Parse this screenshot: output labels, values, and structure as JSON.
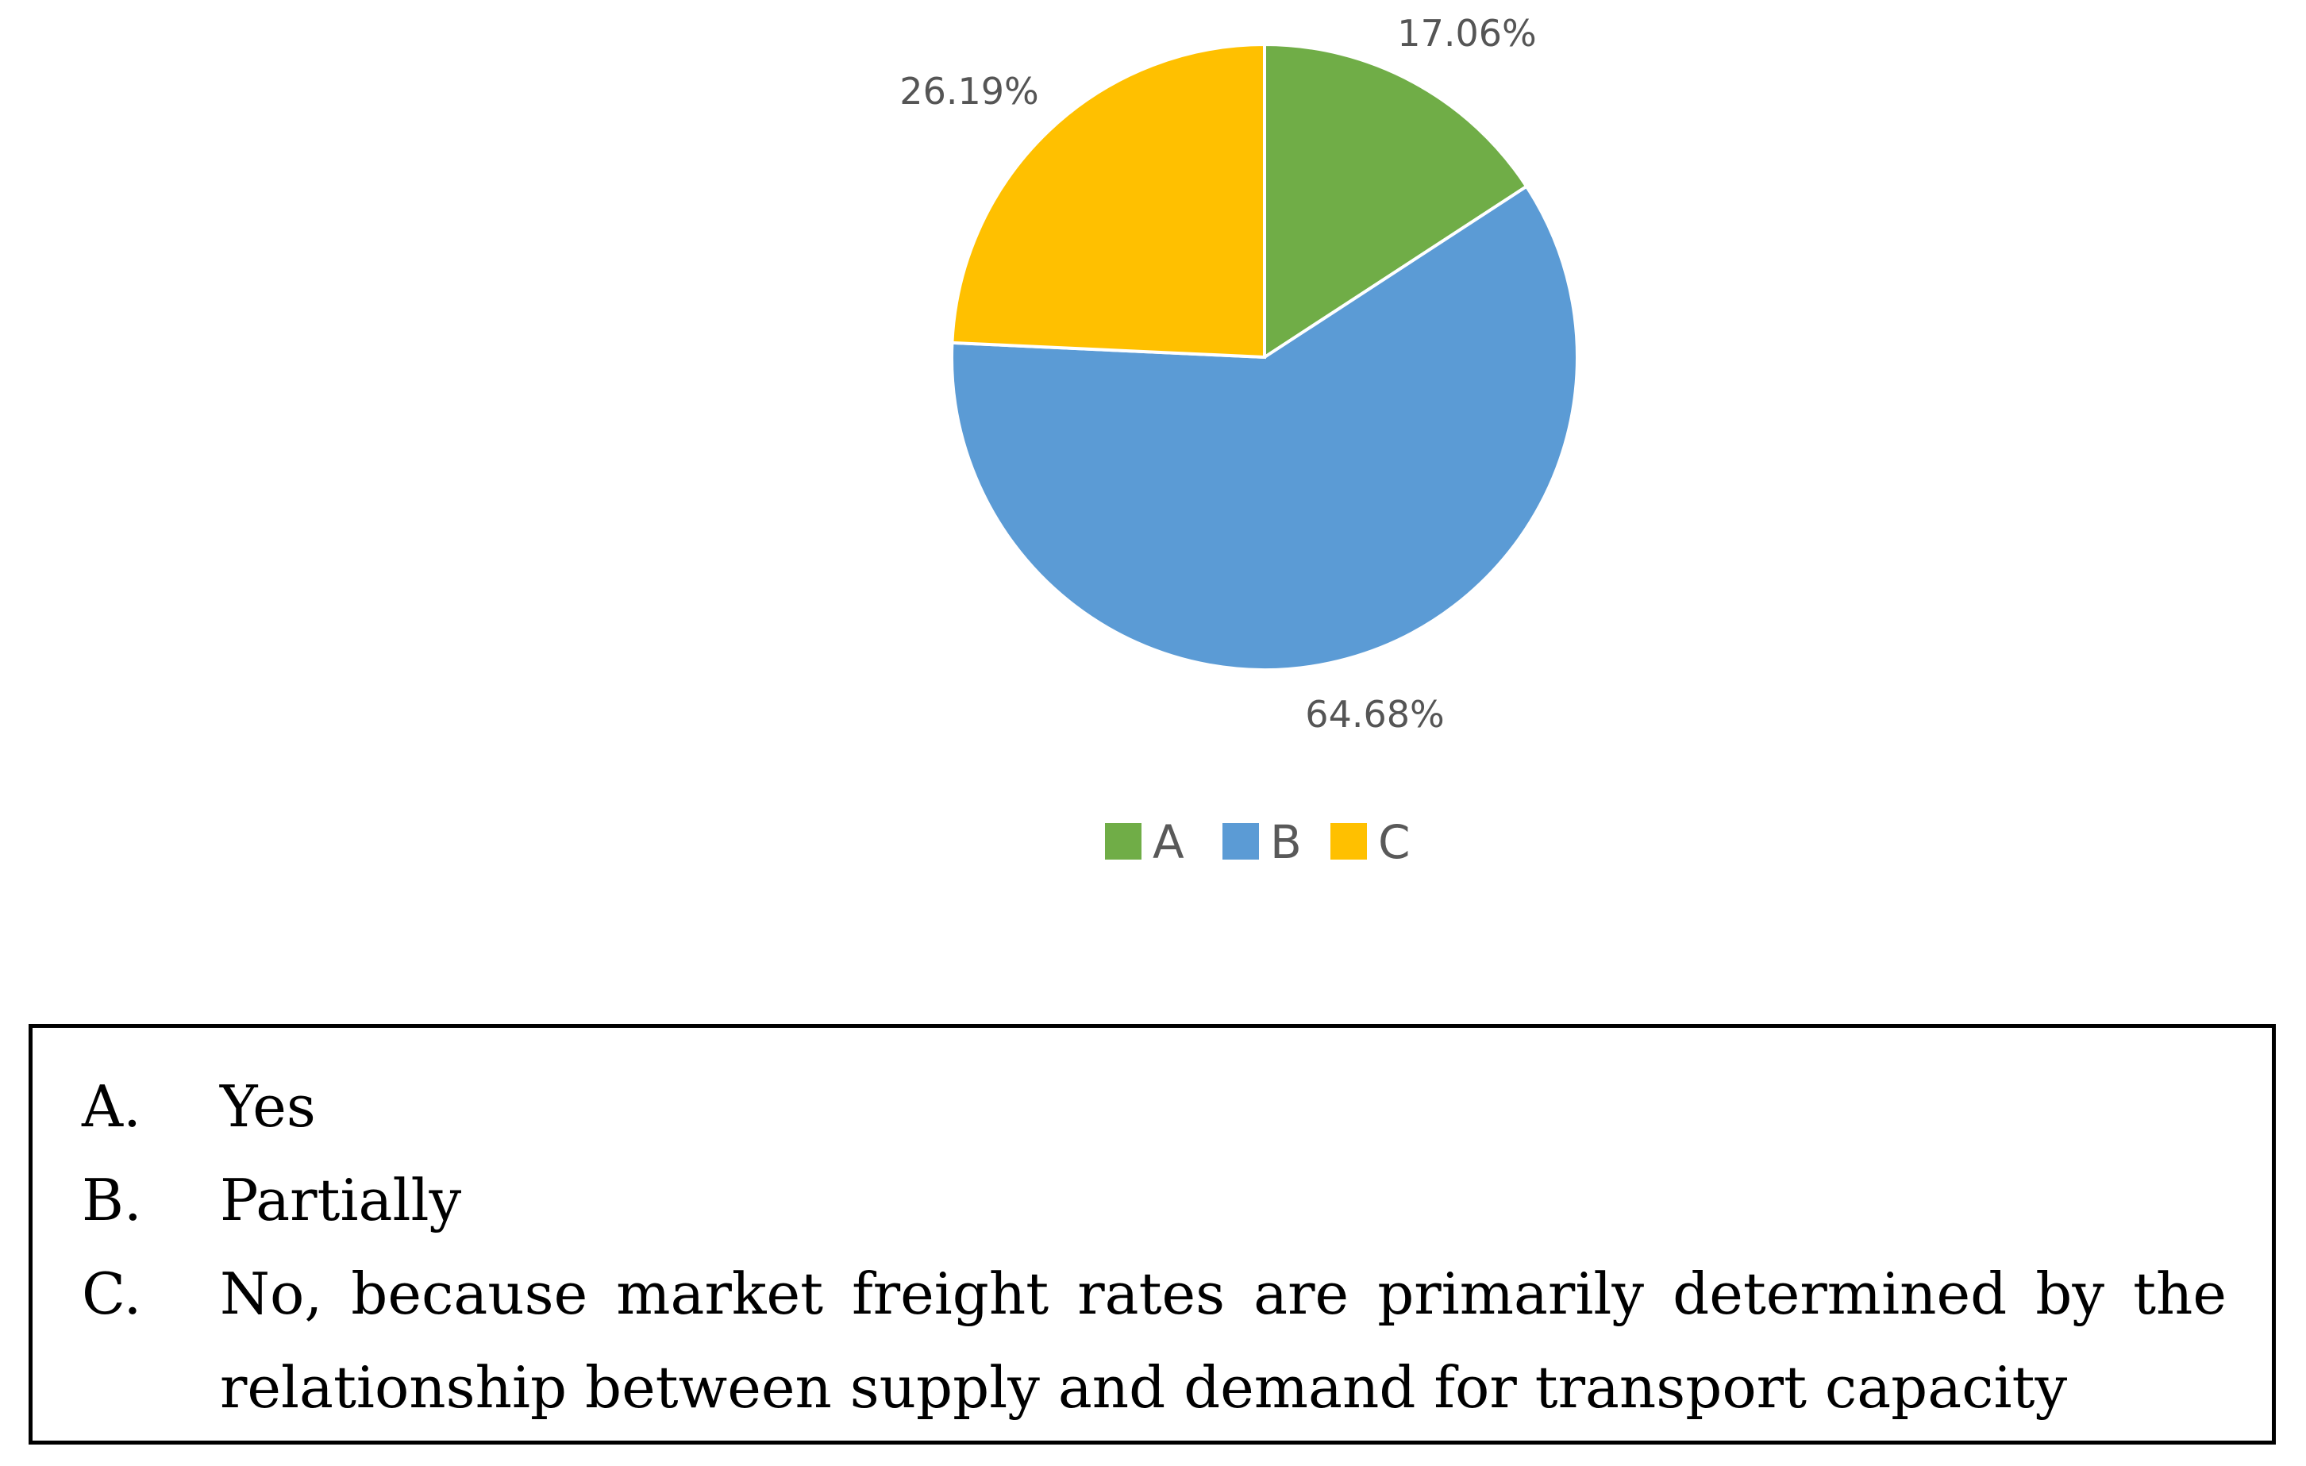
{
  "chart_data": {
    "type": "pie",
    "categories": [
      "A",
      "B",
      "C"
    ],
    "values": [
      17.06,
      64.68,
      26.19
    ],
    "data_labels": [
      "17.06%",
      "64.68%",
      "26.19%"
    ],
    "colors": [
      "#70AD47",
      "#5B9BD5",
      "#FFC000"
    ],
    "legend": {
      "position": "bottom",
      "entries": [
        "A",
        "B",
        "C"
      ]
    },
    "start_angle_deg": 0,
    "direction": "clockwise",
    "title": ""
  },
  "answers": [
    {
      "letter": "A.",
      "text": "Yes"
    },
    {
      "letter": "B.",
      "text": "Partially"
    },
    {
      "letter": "C.",
      "text": "No, because market freight rates are primarily determined by the relationship between supply and demand for transport capacity"
    }
  ]
}
